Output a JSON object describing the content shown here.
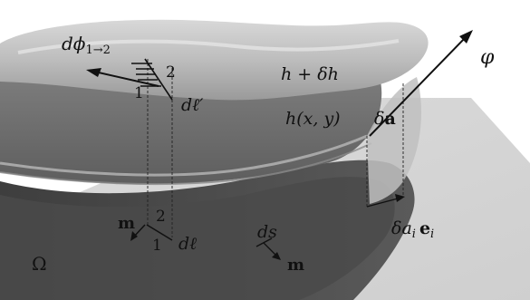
{
  "labels": {
    "dphi": "dϕ",
    "dphi_sub": "1→2",
    "phi": "φ",
    "h_plus_dh": "h + δh",
    "h_xy": "h(x, y)",
    "da": "δ",
    "da_vec": "a",
    "dl_prime": "dℓ′",
    "dl": "dℓ",
    "m_left": "m",
    "m_right": "m",
    "ds": "ds",
    "omega": "Ω",
    "dai": "δa",
    "dai_sub": "i",
    "ei": "e",
    "ei_sub": "i",
    "one_top": "1",
    "two_top": "2",
    "one_bottom": "1",
    "two_bottom": "2"
  }
}
